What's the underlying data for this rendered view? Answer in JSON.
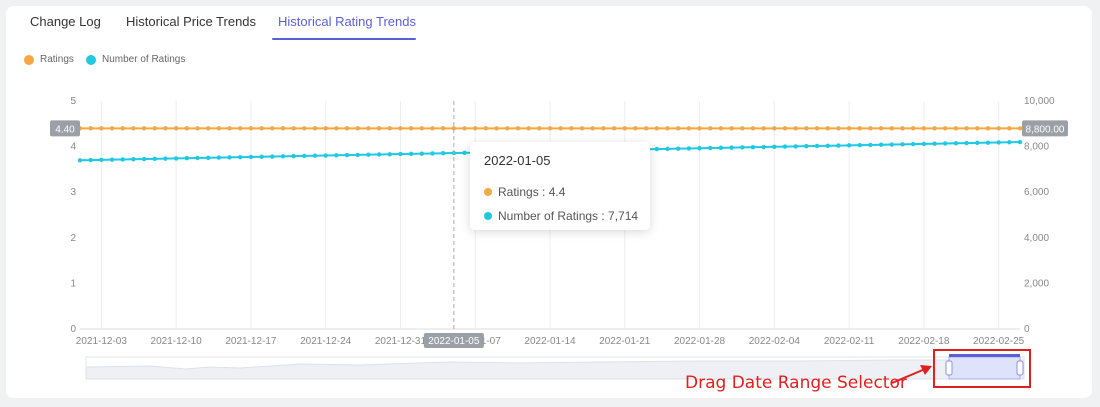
{
  "tabs": [
    {
      "label": "Change Log"
    },
    {
      "label": "Historical Price Trends"
    },
    {
      "label": "Historical Rating Trends"
    }
  ],
  "active_tab": 2,
  "tooltip": {
    "date": "2022-01-05",
    "rows": [
      {
        "label": "Ratings : 4.4",
        "color": "#f4a742"
      },
      {
        "label": "Number of Ratings : 7,714",
        "color": "#1fc8e3"
      }
    ]
  },
  "annotation": {
    "text": "Drag Date Range Selector",
    "color": "#e02020"
  },
  "colors": {
    "ratings": "#f4a742",
    "number_of_ratings": "#1fc8e3",
    "accent": "#5a5fd6"
  },
  "chart_data": {
    "type": "line",
    "title": "",
    "x_ticks": [
      "2021-12-03",
      "2021-12-10",
      "2021-12-17",
      "2021-12-24",
      "2021-12-31",
      "2022-01-07",
      "2022-01-14",
      "2022-01-21",
      "2022-01-28",
      "2022-02-04",
      "2022-02-11",
      "2022-02-18",
      "2022-02-25"
    ],
    "x_start": "2021-12-01",
    "x_end": "2022-02-27",
    "y_left": {
      "ticks": [
        "0",
        "1",
        "2",
        "3",
        "4",
        "5"
      ],
      "range": [
        0,
        5
      ]
    },
    "y_right": {
      "ticks": [
        "0",
        "2,000",
        "4,000",
        "6,000",
        "8,000",
        "10,000"
      ],
      "range": [
        0,
        10000
      ]
    },
    "left_marker_label": "4.40",
    "right_marker_label": "8,800.00",
    "highlight_label": "2022-01-05",
    "highlight_date": "2022-01-05",
    "legend": "top-left",
    "grid": "vertical",
    "series": [
      {
        "name": "Ratings",
        "axis": "left",
        "color": "#f4a742",
        "start": 4.4,
        "end": 4.4
      },
      {
        "name": "Number of Ratings",
        "axis": "right",
        "color": "#1fc8e3",
        "start": 7400,
        "end": 8200
      }
    ]
  }
}
